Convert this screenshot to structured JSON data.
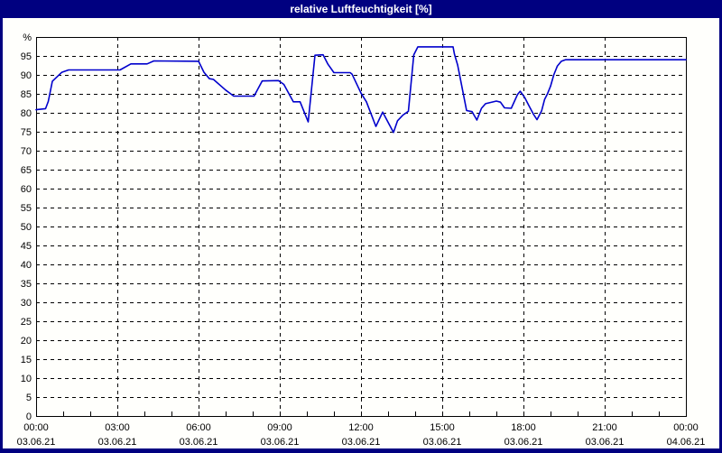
{
  "window": {
    "title": "relative Luftfeuchtigkeit [%]"
  },
  "colors": {
    "frame": "#000080",
    "titlebar_bg": "#000080",
    "title_text": "#ffffff",
    "chart_bg": "#fffffc",
    "plot_border": "#000000",
    "grid": "#000000",
    "axis_text": "#000000",
    "line": "#0000cc"
  },
  "chart_data": {
    "type": "line",
    "title": "relative Luftfeuchtigkeit [%]",
    "ylabel": "%",
    "xlabel": "",
    "ylim": [
      0,
      100
    ],
    "xlim_hours": [
      0,
      24
    ],
    "grid": true,
    "grid_style": "dashed",
    "y_ticks": [
      {
        "value": 100,
        "label": "%"
      },
      {
        "value": 95,
        "label": "95"
      },
      {
        "value": 90,
        "label": "90"
      },
      {
        "value": 85,
        "label": "85"
      },
      {
        "value": 80,
        "label": "80"
      },
      {
        "value": 75,
        "label": "75"
      },
      {
        "value": 70,
        "label": "70"
      },
      {
        "value": 65,
        "label": "65"
      },
      {
        "value": 60,
        "label": "60"
      },
      {
        "value": 55,
        "label": "55"
      },
      {
        "value": 50,
        "label": "50"
      },
      {
        "value": 45,
        "label": "45"
      },
      {
        "value": 40,
        "label": "40"
      },
      {
        "value": 35,
        "label": "35"
      },
      {
        "value": 30,
        "label": "30"
      },
      {
        "value": 25,
        "label": "25"
      },
      {
        "value": 20,
        "label": "20"
      },
      {
        "value": 15,
        "label": "15"
      },
      {
        "value": 10,
        "label": "10"
      },
      {
        "value": 5,
        "label": "5"
      },
      {
        "value": 0,
        "label": "0"
      }
    ],
    "x_ticks": [
      {
        "hour": 0,
        "time": "00:00",
        "date": "03.06.21"
      },
      {
        "hour": 3,
        "time": "03:00",
        "date": "03.06.21"
      },
      {
        "hour": 6,
        "time": "06:00",
        "date": "03.06.21"
      },
      {
        "hour": 9,
        "time": "09:00",
        "date": "03.06.21"
      },
      {
        "hour": 12,
        "time": "12:00",
        "date": "03.06.21"
      },
      {
        "hour": 15,
        "time": "15:00",
        "date": "03.06.21"
      },
      {
        "hour": 18,
        "time": "18:00",
        "date": "03.06.21"
      },
      {
        "hour": 21,
        "time": "21:00",
        "date": "03.06.21"
      },
      {
        "hour": 24,
        "time": "00:00",
        "date": "04.06.21"
      }
    ],
    "x_minor_tick_step_hours": 1,
    "series": [
      {
        "name": "relative Luftfeuchtigkeit",
        "unit": "%",
        "color": "#0000cc",
        "points": [
          [
            0.0,
            80.8
          ],
          [
            0.35,
            81.1
          ],
          [
            0.45,
            83.0
          ],
          [
            0.6,
            88.3
          ],
          [
            0.95,
            90.7
          ],
          [
            1.2,
            91.3
          ],
          [
            3.1,
            91.3
          ],
          [
            3.5,
            92.9
          ],
          [
            4.1,
            92.9
          ],
          [
            4.35,
            93.7
          ],
          [
            6.0,
            93.6
          ],
          [
            6.2,
            90.7
          ],
          [
            6.4,
            89.0
          ],
          [
            6.55,
            88.8
          ],
          [
            7.0,
            86.0
          ],
          [
            7.3,
            84.4
          ],
          [
            8.05,
            84.4
          ],
          [
            8.35,
            88.4
          ],
          [
            8.95,
            88.5
          ],
          [
            9.15,
            87.5
          ],
          [
            9.5,
            82.9
          ],
          [
            9.75,
            82.9
          ],
          [
            10.05,
            77.6
          ],
          [
            10.3,
            95.2
          ],
          [
            10.6,
            95.3
          ],
          [
            10.78,
            92.8
          ],
          [
            11.0,
            90.6
          ],
          [
            11.6,
            90.6
          ],
          [
            11.67,
            90.2
          ],
          [
            12.0,
            85.2
          ],
          [
            12.2,
            82.9
          ],
          [
            12.55,
            76.4
          ],
          [
            12.8,
            80.2
          ],
          [
            13.2,
            74.8
          ],
          [
            13.35,
            77.9
          ],
          [
            13.55,
            79.4
          ],
          [
            13.75,
            80.4
          ],
          [
            13.95,
            95.3
          ],
          [
            14.1,
            97.4
          ],
          [
            15.4,
            97.4
          ],
          [
            15.45,
            95.5
          ],
          [
            15.57,
            92.6
          ],
          [
            15.77,
            85.3
          ],
          [
            15.9,
            80.6
          ],
          [
            16.1,
            80.3
          ],
          [
            16.28,
            78.1
          ],
          [
            16.45,
            81.2
          ],
          [
            16.6,
            82.4
          ],
          [
            17.0,
            83.1
          ],
          [
            17.15,
            82.8
          ],
          [
            17.3,
            81.3
          ],
          [
            17.55,
            81.2
          ],
          [
            17.78,
            84.8
          ],
          [
            17.88,
            85.7
          ],
          [
            18.05,
            84.0
          ],
          [
            18.2,
            81.9
          ],
          [
            18.38,
            79.5
          ],
          [
            18.5,
            78.2
          ],
          [
            18.67,
            80.5
          ],
          [
            18.78,
            83.5
          ],
          [
            18.88,
            84.9
          ],
          [
            19.0,
            87.0
          ],
          [
            19.12,
            90.0
          ],
          [
            19.25,
            92.3
          ],
          [
            19.4,
            93.6
          ],
          [
            19.55,
            94.0
          ],
          [
            24.0,
            94.0
          ]
        ]
      }
    ]
  }
}
